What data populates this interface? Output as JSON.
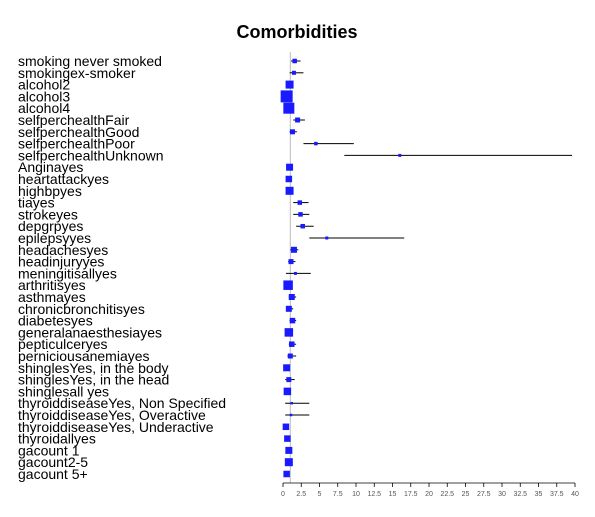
{
  "chart_data": {
    "type": "forest",
    "title": "Comorbidities",
    "xlim": [
      0,
      40
    ],
    "xticks": [
      0,
      2.5,
      5,
      7.5,
      10,
      12.5,
      15,
      17.5,
      20,
      22.5,
      25,
      27.5,
      30,
      32.5,
      35,
      37.5,
      40
    ],
    "xtick_labels": [
      "0",
      "2.5",
      "5",
      "7.5",
      "10",
      "12.5",
      "15",
      "17.5",
      "20",
      "22.5",
      "25",
      "27.5",
      "30",
      "32.5",
      "35",
      "37.5",
      "40"
    ],
    "reference_line": 1,
    "point_color": "#1a1aff",
    "rows": [
      {
        "label": "smoking never smoked",
        "estimate": 1.6,
        "lower": 1.1,
        "upper": 2.4,
        "weight": 0.25
      },
      {
        "label": "smokingex-smoker",
        "estimate": 1.5,
        "lower": 0.9,
        "upper": 2.8,
        "weight": 0.2
      },
      {
        "label": "alcohol2",
        "estimate": 0.9,
        "lower": 0.6,
        "upper": 1.3,
        "weight": 0.6
      },
      {
        "label": "alcohol3",
        "estimate": 0.5,
        "lower": 0.3,
        "upper": 0.8,
        "weight": 1.0
      },
      {
        "label": "alcohol4",
        "estimate": 0.8,
        "lower": 0.5,
        "upper": 1.2,
        "weight": 0.9
      },
      {
        "label": "selfperchealthFair",
        "estimate": 2.0,
        "lower": 1.4,
        "upper": 3.0,
        "weight": 0.3
      },
      {
        "label": "selfperchealthGood",
        "estimate": 1.3,
        "lower": 0.9,
        "upper": 1.9,
        "weight": 0.3
      },
      {
        "label": "selfperchealthPoor",
        "estimate": 4.5,
        "lower": 2.8,
        "upper": 9.7,
        "weight": 0.15
      },
      {
        "label": "selfperchealthUnknown",
        "estimate": 16.0,
        "lower": 8.4,
        "upper": 39.6,
        "weight": 0.1
      },
      {
        "label": "Anginayes",
        "estimate": 0.9,
        "lower": 0.6,
        "upper": 1.3,
        "weight": 0.5
      },
      {
        "label": "heartattackyes",
        "estimate": 0.8,
        "lower": 0.5,
        "upper": 1.2,
        "weight": 0.45
      },
      {
        "label": "highbpyes",
        "estimate": 0.9,
        "lower": 0.7,
        "upper": 1.2,
        "weight": 0.6
      },
      {
        "label": "tiayes",
        "estimate": 2.3,
        "lower": 1.4,
        "upper": 3.5,
        "weight": 0.25
      },
      {
        "label": "strokeyes",
        "estimate": 2.4,
        "lower": 1.4,
        "upper": 3.6,
        "weight": 0.25
      },
      {
        "label": "depgrpyes",
        "estimate": 2.7,
        "lower": 1.8,
        "upper": 4.2,
        "weight": 0.25
      },
      {
        "label": "epilepsyyes",
        "estimate": 6.0,
        "lower": 3.6,
        "upper": 16.6,
        "weight": 0.1
      },
      {
        "label": "headachesyes",
        "estimate": 1.5,
        "lower": 1.0,
        "upper": 2.1,
        "weight": 0.4
      },
      {
        "label": "headinjuryyes",
        "estimate": 1.1,
        "lower": 0.7,
        "upper": 1.7,
        "weight": 0.3
      },
      {
        "label": "meningitisallyes",
        "estimate": 1.7,
        "lower": 0.4,
        "upper": 3.8,
        "weight": 0.1
      },
      {
        "label": "arthritisyes",
        "estimate": 0.7,
        "lower": 0.5,
        "upper": 1.0,
        "weight": 0.75
      },
      {
        "label": "asthmayes",
        "estimate": 1.2,
        "lower": 0.8,
        "upper": 1.8,
        "weight": 0.4
      },
      {
        "label": "chronicbronchitisyes",
        "estimate": 0.8,
        "lower": 0.5,
        "upper": 1.4,
        "weight": 0.4
      },
      {
        "label": "diabetesyes",
        "estimate": 1.3,
        "lower": 0.9,
        "upper": 1.8,
        "weight": 0.35
      },
      {
        "label": "generalanaesthesiayes",
        "estimate": 0.8,
        "lower": 0.5,
        "upper": 1.2,
        "weight": 0.65
      },
      {
        "label": "pepticulceryes",
        "estimate": 1.2,
        "lower": 0.8,
        "upper": 1.8,
        "weight": 0.35
      },
      {
        "label": "perniciousanemiayes",
        "estimate": 1.0,
        "lower": 0.6,
        "upper": 1.8,
        "weight": 0.3
      },
      {
        "label": "shinglesYes, in the body",
        "estimate": 0.5,
        "lower": 0.3,
        "upper": 0.8,
        "weight": 0.5
      },
      {
        "label": "shinglesYes, in the head",
        "estimate": 0.8,
        "lower": 0.3,
        "upper": 1.6,
        "weight": 0.3
      },
      {
        "label": "shinglesall yes",
        "estimate": 0.6,
        "lower": 0.4,
        "upper": 0.9,
        "weight": 0.55
      },
      {
        "label": "thyroiddiseaseYes, Non Specified",
        "estimate": 1.2,
        "lower": 0.3,
        "upper": 3.6,
        "weight": 0.05
      },
      {
        "label": "thyroiddiseaseYes, Overactive",
        "estimate": 1.1,
        "lower": 0.3,
        "upper": 3.6,
        "weight": 0.05
      },
      {
        "label": "thyroiddiseaseYes, Underactive",
        "estimate": 0.4,
        "lower": 0.2,
        "upper": 0.7,
        "weight": 0.45
      },
      {
        "label": "thyroidallyes",
        "estimate": 0.6,
        "lower": 0.4,
        "upper": 0.9,
        "weight": 0.45
      },
      {
        "label": "gacount 1",
        "estimate": 0.8,
        "lower": 0.6,
        "upper": 1.1,
        "weight": 0.5
      },
      {
        "label": "gacount2-5",
        "estimate": 0.8,
        "lower": 0.6,
        "upper": 1.1,
        "weight": 0.6
      },
      {
        "label": "gacount 5+",
        "estimate": 0.5,
        "lower": 0.3,
        "upper": 0.9,
        "weight": 0.45
      }
    ]
  }
}
